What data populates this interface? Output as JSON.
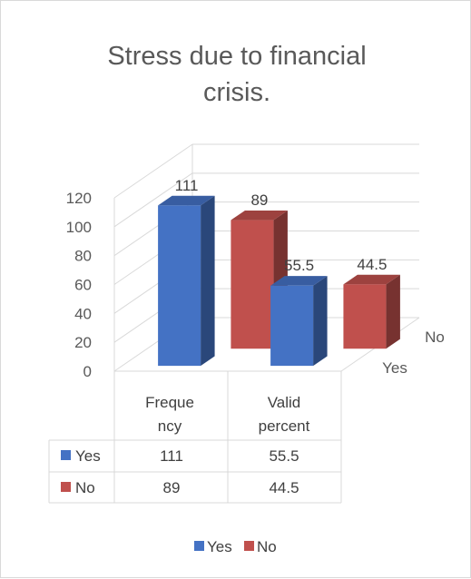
{
  "chart_data": {
    "type": "bar",
    "title_line1": "Stress due to financial",
    "title_line2": "crisis.",
    "categories": [
      {
        "line1": "Freque",
        "line2": "ncy"
      },
      {
        "line1": "Valid",
        "line2": "percent"
      }
    ],
    "series": [
      {
        "name": "Yes",
        "values": [
          111,
          55.5
        ],
        "color": "#4472c4"
      },
      {
        "name": "No",
        "values": [
          89,
          44.5
        ],
        "color": "#c0504d"
      }
    ],
    "y_ticks": [
      "0",
      "20",
      "40",
      "60",
      "80",
      "100",
      "120"
    ],
    "ylim": [
      0,
      120
    ],
    "depth_axis_labels": [
      "No",
      "Yes"
    ],
    "data_labels": [
      [
        "111",
        "55.5"
      ],
      [
        "89",
        "44.5"
      ]
    ],
    "table_rows": [
      {
        "label": "Yes",
        "values": [
          "111",
          "55.5"
        ],
        "color": "#4472c4"
      },
      {
        "label": "No",
        "values": [
          "89",
          "44.5"
        ],
        "color": "#c0504d"
      }
    ],
    "legend": [
      {
        "label": "Yes",
        "color": "#4472c4"
      },
      {
        "label": "No",
        "color": "#c0504d"
      }
    ],
    "legend_position": "bottom",
    "grid": true,
    "view": "3d-clustered-column"
  }
}
